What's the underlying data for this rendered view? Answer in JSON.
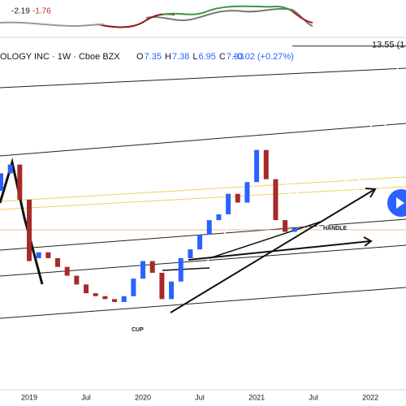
{
  "indicator": {
    "values": [
      "-2.19",
      "-1.76"
    ]
  },
  "header": {
    "title": "OLOGY INC · 1W · Cboe BZX",
    "ohlc": [
      {
        "key": "O",
        "value": "7.35"
      },
      {
        "key": "H",
        "value": "7.38"
      },
      {
        "key": "L",
        "value": "6.95"
      },
      {
        "key": "C",
        "value": "7.33"
      }
    ],
    "change": "+0.02 (+0.27%)"
  },
  "annotations": {
    "cup": "CUP",
    "handle": "HANDLE"
  },
  "chart_data": {
    "type": "candlestick",
    "categories": [
      null,
      null,
      null,
      "2019",
      null,
      null,
      null,
      null,
      null,
      "Jul",
      null,
      null,
      null,
      null,
      null,
      "2020",
      null,
      null,
      null,
      null,
      null,
      "Jul",
      null,
      null,
      null,
      null,
      null,
      "2021",
      null,
      null,
      null,
      null,
      null,
      "Jul",
      null,
      null,
      null,
      null,
      null,
      "2022",
      null
    ],
    "open": [
      8.6,
      9.2,
      9.5,
      8.3,
      6.3,
      6.5,
      6.3,
      6.0,
      5.7,
      5.4,
      5.1,
      5.0,
      4.9,
      4.8,
      5.0,
      5.6,
      6.2,
      5.8,
      4.9,
      5.5,
      6.3,
      6.6,
      7.1,
      7.6,
      7.8,
      8.5,
      8.2,
      8.9,
      10.0,
      9.0,
      7.6,
      7.2,
      null,
      null,
      null,
      null,
      null,
      null,
      null,
      null,
      null
    ],
    "close": [
      9.2,
      9.5,
      8.3,
      6.2,
      6.5,
      6.3,
      6.0,
      5.7,
      5.4,
      5.1,
      5.0,
      4.9,
      4.8,
      5.0,
      5.6,
      6.2,
      5.8,
      4.9,
      5.5,
      6.3,
      6.6,
      7.1,
      7.6,
      7.8,
      8.5,
      8.2,
      8.9,
      10.0,
      9.0,
      7.6,
      7.2,
      7.33,
      null,
      null,
      null,
      null,
      null,
      null,
      null,
      null,
      null
    ],
    "up_color": "#2962ff",
    "down_color": "#a52a2a",
    "ylim": [
      1.8,
      13.85
    ],
    "annotations": [
      {
        "value": 13.55,
        "label": "13.55 (1"
      }
    ]
  }
}
